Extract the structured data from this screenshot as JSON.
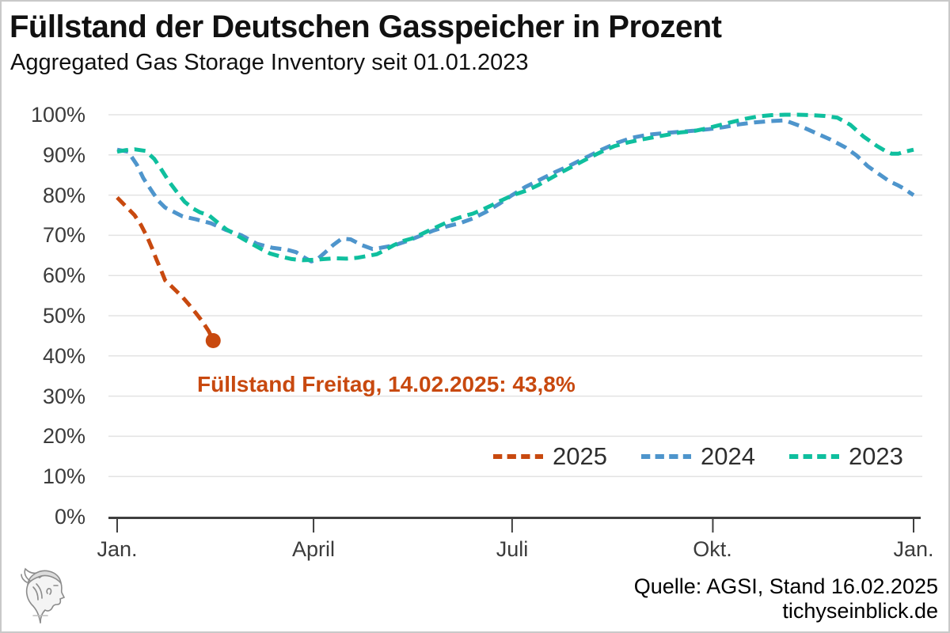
{
  "header": {
    "title": "Füllstand der Deutschen Gasspeicher in Prozent",
    "subtitle": "Aggregated Gas Storage Inventory seit 01.01.2023"
  },
  "annotation": {
    "text": "Füllstand Freitag, 14.02.2025: 43,8%",
    "color": "#C8490F"
  },
  "legend": {
    "items": [
      {
        "label": "2025",
        "color": "#C8490F"
      },
      {
        "label": "2024",
        "color": "#4E95CC"
      },
      {
        "label": "2023",
        "color": "#0FBF9E"
      }
    ]
  },
  "footer": {
    "source_line1": "Quelle: AGSI, Stand 16.02.2025",
    "source_line2": "tichyseinblick.de",
    "logo": "hermes-head-engraving"
  },
  "chart_data": {
    "type": "line",
    "title": "Füllstand der Deutschen Gasspeicher in Prozent",
    "subtitle": "Aggregated Gas Storage Inventory seit 01.01.2023",
    "unit": "percent",
    "x_axis": "day_of_year",
    "xlim": [
      0,
      365
    ],
    "ylim": [
      0,
      100
    ],
    "grid": "horizontal",
    "legend_position": "inside-bottom-right",
    "line_style": "dashed",
    "x_ticks": [
      "Jan.",
      "April",
      "Juli",
      "Okt.",
      "Jan."
    ],
    "x_tick_days": [
      0,
      90,
      181,
      273,
      365
    ],
    "y_ticks": [
      "100%",
      "90%",
      "80%",
      "70%",
      "60%",
      "50%",
      "40%",
      "30%",
      "20%",
      "10%",
      "0%"
    ],
    "y_tick_values": [
      100,
      90,
      80,
      70,
      60,
      50,
      40,
      30,
      20,
      10,
      0
    ],
    "colors": {
      "grid": "#e3e3e3",
      "axis": "#3f3f3f"
    },
    "series": [
      {
        "name": "2025",
        "color": "#C8490F",
        "x": [
          0,
          4,
          8,
          11,
          14,
          16,
          18,
          20,
          22,
          24,
          27,
          30,
          33,
          36,
          39,
          42,
          44
        ],
        "y": [
          79.4,
          77.2,
          75.0,
          72.5,
          69.3,
          66.8,
          64.0,
          61.5,
          58.8,
          57.8,
          56.2,
          54.6,
          52.7,
          50.7,
          48.6,
          46.1,
          43.8
        ]
      },
      {
        "name": "2024",
        "color": "#4E95CC",
        "x": [
          0,
          5,
          9,
          12,
          16,
          19,
          22,
          26,
          30,
          36,
          43,
          50,
          57,
          64,
          71,
          78,
          82,
          86,
          89,
          92,
          95,
          99,
          103,
          107,
          112,
          117,
          121,
          127,
          133,
          139,
          145,
          151,
          157,
          163,
          169,
          175,
          181,
          187,
          194,
          201,
          208,
          215,
          222,
          229,
          236,
          243,
          250,
          257,
          264,
          271,
          278,
          285,
          292,
          299,
          306,
          313,
          320,
          327,
          334,
          339,
          344,
          349,
          354,
          358,
          361,
          363,
          365
        ],
        "y": [
          91.3,
          90.8,
          87.6,
          84.2,
          80.9,
          78.5,
          76.9,
          75.8,
          74.7,
          74.0,
          73.0,
          71.3,
          70.0,
          67.9,
          66.9,
          66.4,
          65.8,
          64.4,
          63.5,
          64.2,
          65.6,
          67.6,
          69.2,
          69.0,
          67.6,
          66.6,
          66.9,
          67.5,
          68.6,
          69.9,
          71.2,
          72.2,
          73.0,
          74.2,
          75.8,
          77.8,
          80.0,
          82.0,
          83.9,
          85.8,
          87.5,
          89.4,
          91.3,
          93.0,
          94.3,
          95.0,
          95.4,
          95.7,
          96.0,
          96.4,
          96.9,
          97.6,
          98.1,
          98.4,
          98.6,
          97.2,
          95.5,
          93.8,
          91.8,
          89.8,
          87.2,
          85.3,
          83.4,
          82.4,
          81.5,
          80.7,
          80.0
        ]
      },
      {
        "name": "2023",
        "color": "#0FBF9E",
        "x": [
          0,
          4,
          8,
          13,
          17,
          20,
          24,
          28,
          31,
          35,
          38,
          42,
          46,
          50,
          54,
          58,
          62,
          66,
          70,
          75,
          80,
          85,
          90,
          95,
          100,
          105,
          110,
          115,
          119,
          123,
          127,
          131,
          135,
          139,
          143,
          147,
          151,
          155,
          159,
          163,
          167,
          171,
          175,
          179,
          183,
          188,
          193,
          198,
          204,
          210,
          216,
          222,
          228,
          234,
          240,
          246,
          252,
          258,
          264,
          270,
          276,
          282,
          288,
          294,
          300,
          306,
          312,
          318,
          324,
          330,
          336,
          342,
          348,
          352,
          355,
          358,
          361,
          365
        ],
        "y": [
          90.8,
          91.2,
          91.4,
          91.0,
          89.0,
          86.6,
          83.2,
          80.3,
          78.3,
          76.6,
          75.7,
          75.0,
          73.2,
          71.5,
          70.3,
          69.0,
          67.8,
          66.6,
          65.5,
          64.7,
          64.1,
          63.8,
          63.9,
          64.1,
          64.3,
          64.2,
          64.4,
          64.9,
          65.3,
          66.4,
          67.6,
          68.6,
          69.2,
          70.2,
          71.2,
          72.2,
          73.2,
          74.1,
          74.8,
          75.4,
          76.3,
          77.3,
          78.4,
          79.4,
          80.3,
          81.2,
          82.5,
          84.0,
          85.8,
          87.5,
          89.2,
          90.8,
          92.2,
          93.1,
          93.8,
          94.4,
          95.0,
          95.6,
          95.9,
          96.6,
          97.4,
          98.2,
          99.0,
          99.6,
          99.9,
          100.0,
          100.0,
          99.9,
          99.7,
          99.3,
          97.5,
          94.6,
          92.3,
          91.0,
          90.3,
          90.3,
          90.8,
          91.3
        ]
      }
    ],
    "endpoint_marker": {
      "series": "2025",
      "day": 44,
      "value": 43.8,
      "label": "Füllstand Freitag, 14.02.2025: 43,8%"
    }
  }
}
